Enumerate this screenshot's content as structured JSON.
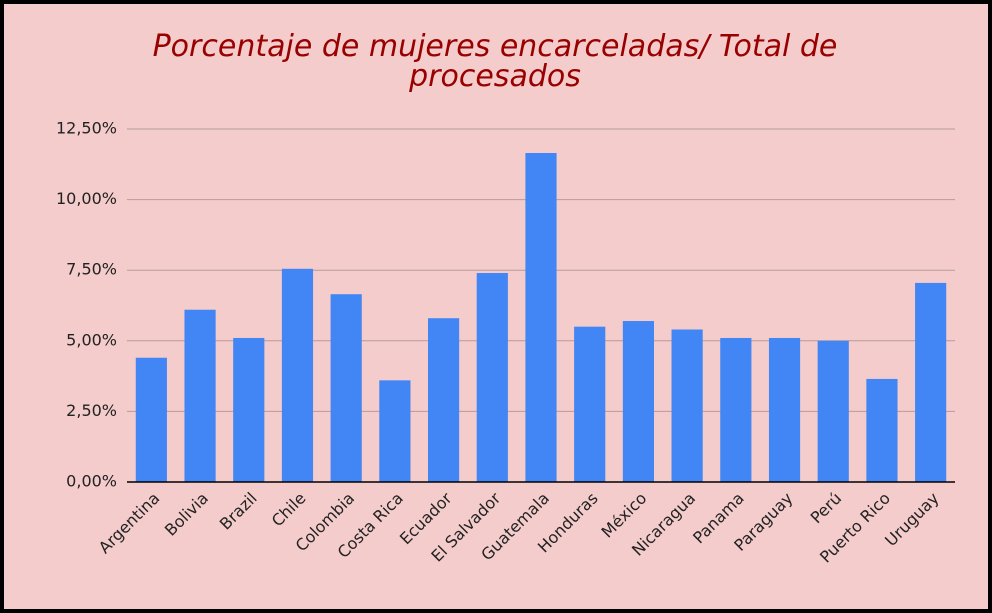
{
  "chart_data": {
    "type": "bar",
    "title": "Porcentaje de mujeres encarceladas/ Total de procesados",
    "categories": [
      "Argentina",
      "Bolivia",
      "Brazil",
      "Chile",
      "Colombia",
      "Costa Rica",
      "Ecuador",
      "El Salvador",
      "Guatemala",
      "Honduras",
      "México",
      "Nicaragua",
      "Panama",
      "Paraguay",
      "Perú",
      "Puerto Rico",
      "Uruguay"
    ],
    "values": [
      4.4,
      6.1,
      5.1,
      7.55,
      6.65,
      3.6,
      5.8,
      7.4,
      11.65,
      5.5,
      5.7,
      5.4,
      5.1,
      5.1,
      5.0,
      3.65,
      7.05
    ],
    "color": "#4285f4",
    "ylim": [
      0,
      12.5
    ],
    "yticks": [
      {
        "value": 0,
        "label": "0,00%"
      },
      {
        "value": 2.5,
        "label": "2,50%"
      },
      {
        "value": 5,
        "label": "5,00%"
      },
      {
        "value": 7.5,
        "label": "7,50%"
      },
      {
        "value": 10,
        "label": "10,00%"
      },
      {
        "value": 12.5,
        "label": "12,50%"
      }
    ],
    "grid": true
  }
}
